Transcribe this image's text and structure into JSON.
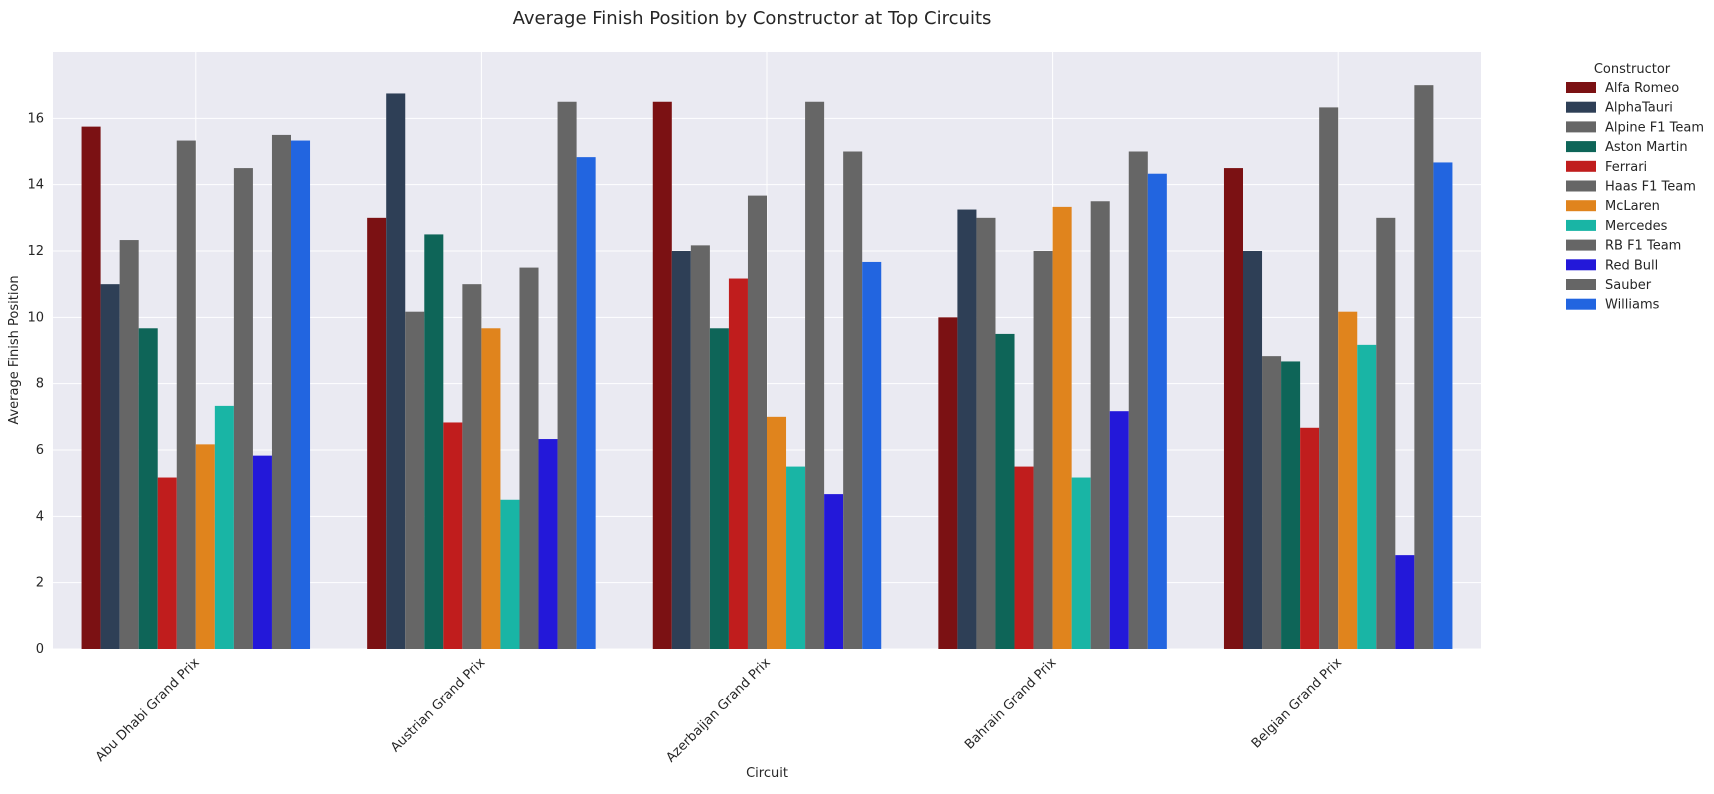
{
  "chart_data": {
    "type": "bar",
    "title": "Average Finish Position by Constructor at Top Circuits",
    "xlabel": "Circuit",
    "ylabel": "Average Finish Position",
    "ylim": [
      0,
      18
    ],
    "yticks": [
      0,
      2,
      4,
      6,
      8,
      10,
      12,
      14,
      16
    ],
    "grid": true,
    "legend": {
      "title": "Constructor",
      "placement": "outside-right"
    },
    "categories": [
      "Abu Dhabi Grand Prix",
      "Austrian Grand Prix",
      "Azerbaijan Grand Prix",
      "Bahrain Grand Prix",
      "Belgian Grand Prix"
    ],
    "series": [
      {
        "name": "Alfa Romeo",
        "color": "#7b1113",
        "values": [
          15.75,
          13.0,
          16.5,
          10.0,
          14.5
        ]
      },
      {
        "name": "AlphaTauri",
        "color": "#2e3f56",
        "values": [
          11.0,
          16.75,
          12.0,
          13.25,
          12.0
        ]
      },
      {
        "name": "Alpine F1 Team",
        "color": "#666666",
        "values": [
          12.33,
          10.17,
          12.17,
          13.0,
          8.83
        ]
      },
      {
        "name": "Aston Martin",
        "color": "#0e6558",
        "values": [
          9.67,
          12.5,
          9.67,
          9.5,
          8.67
        ]
      },
      {
        "name": "Ferrari",
        "color": "#c01d1d",
        "values": [
          5.17,
          6.83,
          11.17,
          5.5,
          6.67
        ]
      },
      {
        "name": "Haas F1 Team",
        "color": "#666666",
        "values": [
          15.33,
          11.0,
          13.67,
          12.0,
          16.33
        ]
      },
      {
        "name": "McLaren",
        "color": "#e0841d",
        "values": [
          6.17,
          9.67,
          7.0,
          13.33,
          10.17
        ]
      },
      {
        "name": "Mercedes",
        "color": "#19b5a5",
        "values": [
          7.33,
          4.5,
          5.5,
          5.17,
          9.17
        ]
      },
      {
        "name": "RB F1 Team",
        "color": "#666666",
        "values": [
          14.5,
          11.5,
          16.5,
          13.5,
          13.0
        ]
      },
      {
        "name": "Red Bull",
        "color": "#2318d9",
        "values": [
          5.83,
          6.33,
          4.67,
          7.17,
          2.83
        ]
      },
      {
        "name": "Sauber",
        "color": "#666666",
        "values": [
          15.5,
          16.5,
          15.0,
          15.0,
          17.0
        ]
      },
      {
        "name": "Williams",
        "color": "#2265e0",
        "values": [
          15.33,
          14.83,
          11.67,
          14.33,
          14.67
        ]
      }
    ]
  }
}
